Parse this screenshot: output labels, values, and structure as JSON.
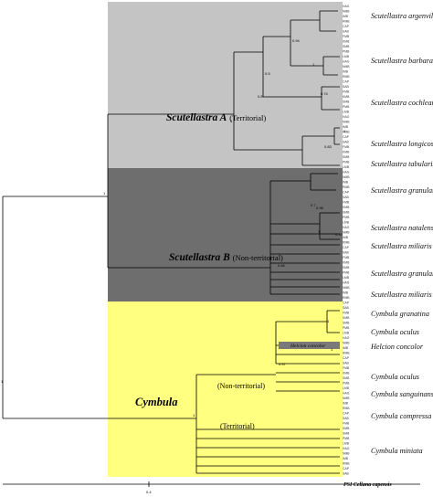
{
  "clades": [
    {
      "id": "a",
      "name": "Scutellastra A",
      "qualifier": "(Territorial)",
      "color": "#c4c4c4"
    },
    {
      "id": "b",
      "name": "Scutellastra B",
      "qualifier": "(Non-territorial)",
      "color": "#6e6e6e"
    },
    {
      "id": "c",
      "name": "Cymbula",
      "qualifier": "",
      "color": "#ffff80"
    }
  ],
  "cymbula_groups": [
    "(Non-territorial)",
    "(Territorial)"
  ],
  "species": [
    "Scutellastra argenvillei",
    "Scutellastra barbara",
    "Scutellastra cochlear",
    "Scutellastra longicosta",
    "Scutellastra tabularis",
    "Scutellastra granularis",
    "Scutellastra natalensis",
    "Scutellastra miliaris",
    "Scutellastra granularis",
    "Scutellastra miliaris",
    "Cymbula granatina",
    "Cymbula oculus",
    "Helcion concolor",
    "Cymbula oculus",
    "Cymbula sanguinans",
    "Cymbula compressa",
    "Cymbula miniata"
  ],
  "support": [
    "1",
    "1",
    "1",
    "0.94",
    "0.5",
    "0.8",
    "1",
    "0.74",
    "0.83",
    "1",
    "0.96",
    "0.7",
    "1",
    "0.93",
    "0.66",
    "1",
    "1",
    "0.97",
    "1"
  ],
  "inline_label": "Helcion concolor",
  "outgroup": "PSI Cellana capensis",
  "scale_label": "0.4",
  "tip_prefixes": [
    "HAG",
    "NMB",
    "IMB",
    "RMB",
    "CAP",
    "SAB",
    "FMB",
    "KMB",
    "SMB",
    "PMB",
    "LMB"
  ]
}
